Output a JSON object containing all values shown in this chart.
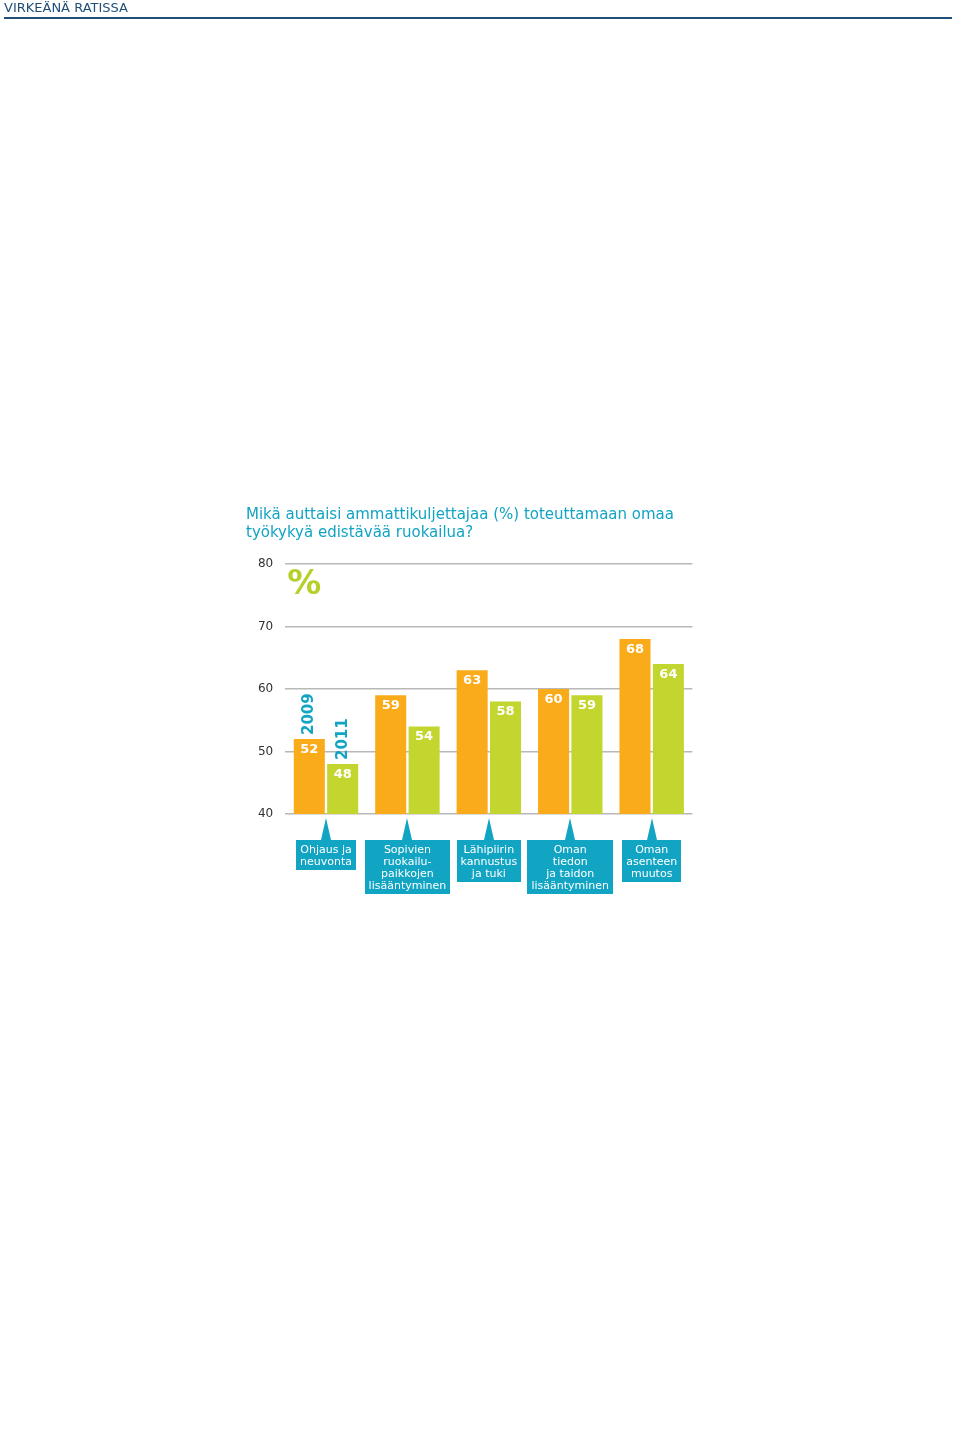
{
  "chart_data": {
    "type": "bar",
    "title": "Mikä auttaisi ammattikuljettajaa (%) toteuttamaan omaa työkykyä edistävää ruokailua?",
    "ylabel": "%",
    "annotations": [
      "VIRKEÄNÄ RATISSA"
    ],
    "categories": [
      "Ohjaus ja\nneuvonta",
      "Sopivien\nruokailu-\npaikkojen\nlisääntyminen",
      "Lähipiirin\nkannustus\nja tuki",
      "Oman\ntiedon\nja taidon\nlisääntyminen",
      "Oman\nasenteen\nmuutos"
    ],
    "series": [
      {
        "name": "2009",
        "color": "#f9ab1a",
        "values": [
          52,
          59,
          63,
          60,
          68
        ]
      },
      {
        "name": "2011",
        "color": "#c3d52f",
        "values": [
          48,
          54,
          58,
          59,
          64
        ]
      }
    ],
    "ylim": [
      40,
      80
    ],
    "yticks": [
      40,
      50,
      60,
      70,
      80
    ],
    "grid": "y",
    "legend": false,
    "data_labels": true
  }
}
